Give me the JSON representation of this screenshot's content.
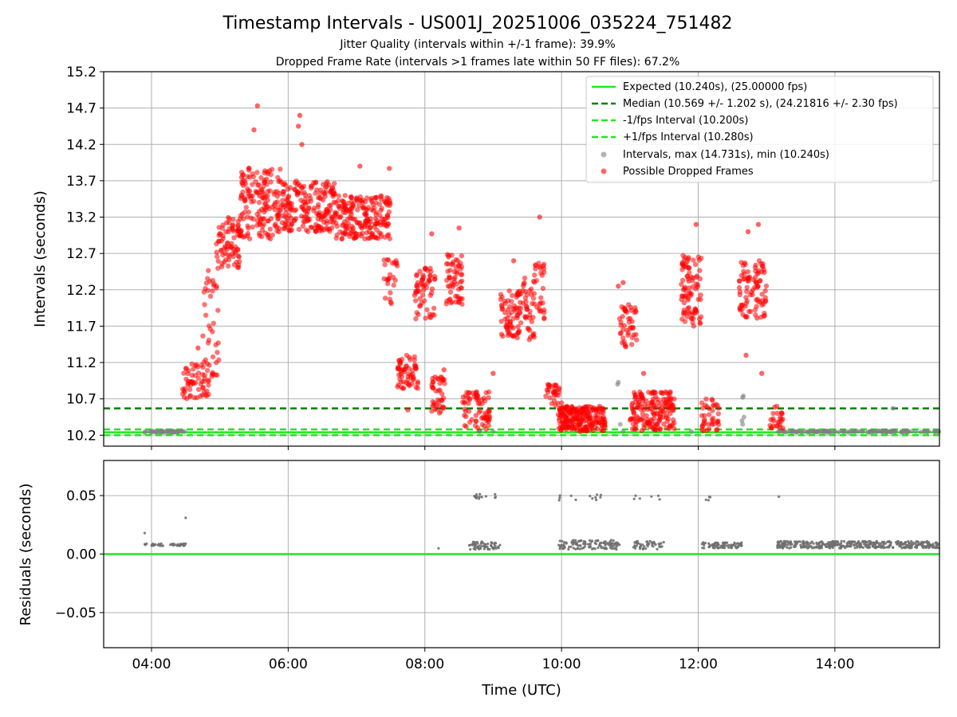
{
  "title": "Timestamp Intervals - US001J_20251006_035224_751482",
  "subtitle1": "Jitter Quality (intervals within +/-1 frame): 39.9%",
  "subtitle2": "Dropped Frame Rate (intervals >1 frames late within 50 FF files): 67.2%",
  "colors": {
    "expected": "#1ee81e",
    "median": "#008000",
    "dropped": "#ff0000",
    "normal": "#808080",
    "residual": "#707070",
    "grid": "#b0b0b0"
  },
  "chart_data": [
    {
      "type": "scatter",
      "name": "intervals",
      "title": "Timestamp Intervals - US001J_20251006_035224_751482",
      "xlabel": "",
      "ylabel": "Intervals (seconds)",
      "xlim_hours": [
        3.3,
        15.53
      ],
      "ylim": [
        10.05,
        15.2
      ],
      "yticks": [
        10.2,
        10.7,
        11.2,
        11.7,
        12.2,
        12.7,
        13.2,
        13.7,
        14.2,
        14.7,
        15.2
      ],
      "ytick_labels": [
        "10.2",
        "10.7",
        "11.2",
        "11.7",
        "12.2",
        "12.7",
        "13.2",
        "13.7",
        "14.2",
        "14.7",
        "15.2"
      ],
      "xticks_hours": [
        4,
        6,
        8,
        10,
        12,
        14
      ],
      "grid": true,
      "legend_position": "top-right",
      "hlines": [
        {
          "name": "expected",
          "value": 10.24,
          "style": "solid",
          "label": "Expected (10.240s), (25.00000 fps)"
        },
        {
          "name": "median",
          "value": 10.569,
          "style": "dashed",
          "label": "Median (10.569 +/- 1.202 s), (24.21816 +/- 2.30 fps)"
        },
        {
          "name": "minus-one",
          "value": 10.2,
          "style": "dashed",
          "label": "-1/fps Interval (10.200s)"
        },
        {
          "name": "plus-one",
          "value": 10.28,
          "style": "dashed",
          "label": "+1/fps Interval (10.280s)"
        }
      ],
      "series_labels": {
        "intervals": "Intervals, max (14.731s), min (10.240s)",
        "dropped": "Possible Dropped Frames"
      },
      "intervals_max": 14.731,
      "intervals_min": 10.24,
      "normal_points": [
        [
          3.9,
          10.24
        ],
        [
          4.0,
          10.24
        ],
        [
          4.1,
          10.24
        ],
        [
          4.2,
          10.24
        ],
        [
          4.3,
          10.24
        ],
        [
          4.45,
          10.25
        ],
        [
          8.8,
          10.25
        ],
        [
          9.0,
          10.25
        ],
        [
          10.9,
          10.25
        ],
        [
          11.9,
          10.25
        ],
        [
          10.82,
          10.9
        ],
        [
          10.83,
          10.93
        ],
        [
          10.86,
          10.35
        ],
        [
          12.65,
          10.72
        ],
        [
          12.66,
          10.74
        ],
        [
          12.64,
          10.4
        ],
        [
          12.65,
          10.35
        ],
        [
          12.67,
          10.45
        ],
        [
          14.85,
          10.57
        ]
      ],
      "dense_bands": [
        {
          "series": "normal",
          "x_start": 3.9,
          "x_end": 4.5,
          "y_low": 10.24,
          "y_high": 10.26,
          "count": 40
        },
        {
          "series": "normal",
          "x_start": 13.15,
          "x_end": 15.53,
          "y_low": 10.24,
          "y_high": 10.26,
          "count": 140
        },
        {
          "series": "dropped",
          "x_start": 4.45,
          "x_end": 4.85,
          "y_low": 10.7,
          "y_high": 11.2,
          "count": 60
        },
        {
          "series": "dropped",
          "x_start": 4.75,
          "x_end": 5.0,
          "y_low": 11.0,
          "y_high": 12.5,
          "count": 40
        },
        {
          "series": "dropped",
          "x_start": 4.95,
          "x_end": 5.3,
          "y_low": 12.5,
          "y_high": 13.2,
          "count": 80
        },
        {
          "series": "dropped",
          "x_start": 5.3,
          "x_end": 5.9,
          "y_low": 12.9,
          "y_high": 13.9,
          "count": 160
        },
        {
          "series": "dropped",
          "x_start": 5.9,
          "x_end": 6.7,
          "y_low": 13.0,
          "y_high": 13.7,
          "count": 200
        },
        {
          "series": "dropped",
          "x_start": 6.7,
          "x_end": 7.5,
          "y_low": 12.9,
          "y_high": 13.5,
          "count": 200
        },
        {
          "series": "dropped",
          "x_start": 7.4,
          "x_end": 7.6,
          "y_low": 12.0,
          "y_high": 12.7,
          "count": 25
        },
        {
          "series": "dropped",
          "x_start": 7.6,
          "x_end": 7.9,
          "y_low": 10.8,
          "y_high": 11.3,
          "count": 60
        },
        {
          "series": "dropped",
          "x_start": 7.85,
          "x_end": 8.15,
          "y_low": 11.8,
          "y_high": 12.5,
          "count": 60
        },
        {
          "series": "dropped",
          "x_start": 8.1,
          "x_end": 8.3,
          "y_low": 10.5,
          "y_high": 11.0,
          "count": 40
        },
        {
          "series": "dropped",
          "x_start": 8.3,
          "x_end": 8.55,
          "y_low": 12.0,
          "y_high": 12.7,
          "count": 60
        },
        {
          "series": "dropped",
          "x_start": 8.55,
          "x_end": 8.95,
          "y_low": 10.26,
          "y_high": 10.8,
          "count": 70
        },
        {
          "series": "dropped",
          "x_start": 9.1,
          "x_end": 9.4,
          "y_low": 11.5,
          "y_high": 12.2,
          "count": 70
        },
        {
          "series": "dropped",
          "x_start": 9.4,
          "x_end": 9.6,
          "y_low": 11.5,
          "y_high": 12.4,
          "count": 40
        },
        {
          "series": "dropped",
          "x_start": 9.6,
          "x_end": 9.75,
          "y_low": 11.8,
          "y_high": 12.6,
          "count": 30
        },
        {
          "series": "dropped",
          "x_start": 9.75,
          "x_end": 10.0,
          "y_low": 10.6,
          "y_high": 10.9,
          "count": 30
        },
        {
          "series": "dropped",
          "x_start": 9.95,
          "x_end": 10.65,
          "y_low": 10.26,
          "y_high": 10.6,
          "count": 220
        },
        {
          "series": "dropped",
          "x_start": 10.85,
          "x_end": 11.1,
          "y_low": 11.4,
          "y_high": 12.0,
          "count": 45
        },
        {
          "series": "dropped",
          "x_start": 11.0,
          "x_end": 11.65,
          "y_low": 10.26,
          "y_high": 10.8,
          "count": 170
        },
        {
          "series": "dropped",
          "x_start": 11.75,
          "x_end": 12.05,
          "y_low": 11.7,
          "y_high": 12.7,
          "count": 90
        },
        {
          "series": "dropped",
          "x_start": 12.05,
          "x_end": 12.3,
          "y_low": 10.26,
          "y_high": 10.7,
          "count": 40
        },
        {
          "series": "dropped",
          "x_start": 12.6,
          "x_end": 13.0,
          "y_low": 11.8,
          "y_high": 12.6,
          "count": 90
        },
        {
          "series": "dropped",
          "x_start": 13.05,
          "x_end": 13.25,
          "y_low": 10.26,
          "y_high": 10.6,
          "count": 25
        }
      ],
      "dropped_outliers": [
        [
          5.55,
          14.731
        ],
        [
          6.17,
          14.6
        ],
        [
          5.5,
          14.4
        ],
        [
          6.15,
          14.45
        ],
        [
          6.2,
          14.2
        ],
        [
          4.68,
          11.4
        ],
        [
          7.05,
          13.9
        ],
        [
          7.48,
          13.87
        ],
        [
          8.1,
          12.97
        ],
        [
          8.5,
          13.05
        ],
        [
          9.68,
          13.2
        ],
        [
          10.9,
          12.3
        ],
        [
          10.83,
          12.25
        ],
        [
          11.97,
          13.1
        ],
        [
          12.88,
          13.1
        ],
        [
          12.73,
          13.0
        ],
        [
          9.3,
          12.6
        ],
        [
          9.0,
          11.05
        ],
        [
          8.15,
          11.0
        ],
        [
          8.28,
          11.1
        ],
        [
          10.27,
          10.25
        ],
        [
          12.93,
          11.05
        ],
        [
          12.7,
          11.3
        ],
        [
          7.75,
          10.55
        ],
        [
          11.2,
          11.05
        ]
      ]
    },
    {
      "type": "scatter",
      "name": "residuals",
      "xlabel": "Time (UTC)",
      "ylabel": "Residuals (seconds)",
      "xlim_hours": [
        3.3,
        15.53
      ],
      "ylim": [
        -0.08,
        0.08
      ],
      "yticks": [
        -0.05,
        0.0,
        0.05
      ],
      "ytick_labels": [
        "−0.05",
        "0.00",
        "0.05"
      ],
      "xticks_hours": [
        4,
        6,
        8,
        10,
        12,
        14
      ],
      "xtick_labels": [
        "04:00",
        "06:00",
        "08:00",
        "10:00",
        "12:00",
        "14:00"
      ],
      "grid": true,
      "zero_line": 0.0,
      "points": [
        [
          3.9,
          0.018
        ],
        [
          4.5,
          0.031
        ],
        [
          8.2,
          0.005
        ],
        [
          13.18,
          0.049
        ]
      ],
      "dense_bands": [
        {
          "x_start": 3.9,
          "x_end": 4.5,
          "y_low": 0.007,
          "y_high": 0.009,
          "count": 45
        },
        {
          "x_start": 8.65,
          "x_end": 9.1,
          "y_low": 0.004,
          "y_high": 0.011,
          "count": 60
        },
        {
          "x_start": 8.72,
          "x_end": 8.9,
          "y_low": 0.046,
          "y_high": 0.052,
          "count": 12
        },
        {
          "x_start": 9.0,
          "x_end": 9.05,
          "y_low": 0.047,
          "y_high": 0.052,
          "count": 3
        },
        {
          "x_start": 9.95,
          "x_end": 10.85,
          "y_low": 0.004,
          "y_high": 0.012,
          "count": 120
        },
        {
          "x_start": 9.95,
          "x_end": 10.6,
          "y_low": 0.046,
          "y_high": 0.051,
          "count": 12
        },
        {
          "x_start": 11.05,
          "x_end": 11.5,
          "y_low": 0.004,
          "y_high": 0.011,
          "count": 50
        },
        {
          "x_start": 11.05,
          "x_end": 11.5,
          "y_low": 0.046,
          "y_high": 0.05,
          "count": 6
        },
        {
          "x_start": 12.05,
          "x_end": 12.65,
          "y_low": 0.005,
          "y_high": 0.01,
          "count": 80
        },
        {
          "x_start": 12.05,
          "x_end": 12.2,
          "y_low": 0.046,
          "y_high": 0.05,
          "count": 4
        },
        {
          "x_start": 13.15,
          "x_end": 15.53,
          "y_low": 0.005,
          "y_high": 0.011,
          "count": 400
        }
      ]
    }
  ]
}
